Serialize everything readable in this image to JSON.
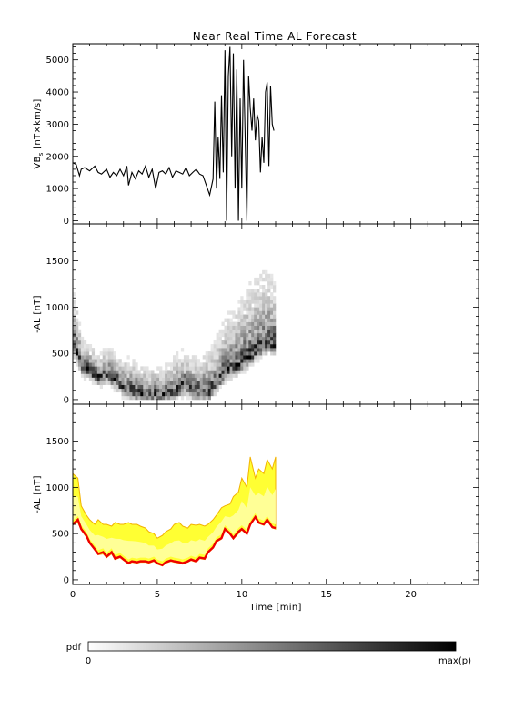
{
  "chart_data": [
    {
      "type": "line",
      "title": "Near Real Time AL Forecast",
      "ylabel": "VB",
      "ylabel_sub": "s",
      "ylabel_unit": "[nT×km/s]",
      "xlim": [
        0,
        24
      ],
      "ylim": [
        -100,
        5500
      ],
      "yticks": [
        0,
        1000,
        2000,
        3000,
        4000,
        5000
      ],
      "series": [
        {
          "x": [
            0.0,
            0.2,
            0.4,
            0.5,
            0.7,
            1.0,
            1.3,
            1.5,
            1.7,
            2.0,
            2.2,
            2.4,
            2.6,
            2.8,
            3.0,
            3.2,
            3.3,
            3.5,
            3.7,
            3.9,
            4.1,
            4.3,
            4.5,
            4.7,
            4.9,
            5.1,
            5.3,
            5.5,
            5.7,
            5.9,
            6.1,
            6.3,
            6.5,
            6.7,
            6.9,
            7.1,
            7.3,
            7.5,
            7.7,
            7.9,
            8.1,
            8.3,
            8.4,
            8.5,
            8.6,
            8.7,
            8.8,
            8.9,
            9.0,
            9.1,
            9.2,
            9.3,
            9.4,
            9.5,
            9.6,
            9.7,
            9.8,
            9.9,
            10.0,
            10.1,
            10.2,
            10.3,
            10.4,
            10.5,
            10.6,
            10.7,
            10.8,
            10.9,
            11.0,
            11.1,
            11.2,
            11.3,
            11.4,
            11.5,
            11.6,
            11.7,
            11.8,
            11.9
          ],
          "values": [
            1800,
            1750,
            1400,
            1600,
            1650,
            1550,
            1700,
            1500,
            1450,
            1600,
            1350,
            1500,
            1400,
            1600,
            1400,
            1700,
            1100,
            1500,
            1300,
            1550,
            1450,
            1700,
            1350,
            1600,
            1000,
            1500,
            1550,
            1450,
            1650,
            1350,
            1550,
            1500,
            1450,
            1650,
            1400,
            1500,
            1600,
            1450,
            1400,
            1100,
            800,
            1300,
            3700,
            1000,
            2600,
            1300,
            3900,
            1500,
            5300,
            0,
            4500,
            5400,
            2000,
            5200,
            1000,
            4700,
            0,
            3800,
            1000,
            5000,
            2600,
            0,
            4500,
            3500,
            2800,
            3800,
            2500,
            3300,
            3100,
            1500,
            2600,
            1800,
            4000,
            4300,
            1700,
            4200,
            3000,
            2800
          ]
        }
      ]
    },
    {
      "type": "heatmap",
      "ylabel": "-AL [nT]",
      "xlim": [
        0,
        24
      ],
      "ylim": [
        -50,
        1900
      ],
      "yticks": [
        0,
        500,
        1000,
        1500
      ],
      "pdf_label": "pdf",
      "pdf_min_label": "0",
      "pdf_max_label": "max(p)",
      "x": [
        0.0,
        0.5,
        1.0,
        1.5,
        2.0,
        2.5,
        3.0,
        3.5,
        4.0,
        4.5,
        5.0,
        5.5,
        6.0,
        6.5,
        7.0,
        7.5,
        8.0,
        8.5,
        9.0,
        9.5,
        10.0,
        10.5,
        11.0,
        11.5,
        12.0
      ],
      "mode": [
        550,
        350,
        300,
        230,
        280,
        200,
        120,
        80,
        60,
        50,
        50,
        60,
        90,
        150,
        100,
        80,
        80,
        200,
        300,
        350,
        400,
        480,
        550,
        600,
        580
      ],
      "spread": [
        600,
        300,
        280,
        280,
        280,
        300,
        330,
        350,
        300,
        300,
        300,
        330,
        400,
        380,
        350,
        400,
        450,
        500,
        600,
        650,
        750,
        800,
        800,
        800,
        700
      ]
    },
    {
      "type": "area",
      "ylabel": "-AL [nT]",
      "xlabel": "Time [min]",
      "xlim": [
        0,
        24
      ],
      "ylim": [
        -50,
        1900
      ],
      "yticks": [
        0,
        500,
        1000,
        1500
      ],
      "xticks": [
        0,
        5,
        10,
        15,
        20
      ],
      "x": [
        0.0,
        0.3,
        0.5,
        0.8,
        1.0,
        1.3,
        1.5,
        1.8,
        2.0,
        2.3,
        2.5,
        2.8,
        3.0,
        3.3,
        3.5,
        3.8,
        4.0,
        4.3,
        4.5,
        4.8,
        5.0,
        5.3,
        5.5,
        5.8,
        6.0,
        6.3,
        6.5,
        6.8,
        7.0,
        7.3,
        7.5,
        7.8,
        8.0,
        8.3,
        8.5,
        8.8,
        9.0,
        9.3,
        9.5,
        9.8,
        10.0,
        10.3,
        10.5,
        10.8,
        11.0,
        11.3,
        11.5,
        11.8,
        12.0
      ],
      "median": [
        600,
        650,
        550,
        480,
        400,
        330,
        280,
        300,
        250,
        300,
        230,
        250,
        220,
        180,
        200,
        190,
        200,
        200,
        190,
        210,
        180,
        160,
        190,
        210,
        200,
        190,
        180,
        200,
        220,
        200,
        240,
        230,
        300,
        350,
        420,
        450,
        550,
        500,
        450,
        520,
        550,
        500,
        600,
        680,
        620,
        600,
        650,
        570,
        560
      ],
      "upper": [
        1150,
        1100,
        800,
        700,
        650,
        600,
        650,
        600,
        600,
        580,
        620,
        600,
        600,
        620,
        600,
        600,
        580,
        560,
        520,
        500,
        450,
        480,
        520,
        550,
        600,
        620,
        580,
        560,
        600,
        590,
        600,
        580,
        600,
        650,
        700,
        780,
        800,
        820,
        900,
        950,
        1100,
        1000,
        1330,
        1100,
        1200,
        1150,
        1300,
        1200,
        1330
      ],
      "lower": [
        600,
        620,
        540,
        460,
        390,
        320,
        270,
        280,
        240,
        280,
        220,
        240,
        210,
        170,
        190,
        180,
        190,
        190,
        180,
        200,
        170,
        150,
        180,
        200,
        190,
        180,
        170,
        190,
        210,
        190,
        230,
        220,
        290,
        340,
        410,
        440,
        540,
        490,
        440,
        500,
        540,
        490,
        590,
        670,
        610,
        590,
        640,
        560,
        550
      ],
      "band_colors": {
        "outer": "#ffff33",
        "inner": "#ffffb8",
        "edge": "#f2b200",
        "median": "#ee0000"
      }
    }
  ]
}
